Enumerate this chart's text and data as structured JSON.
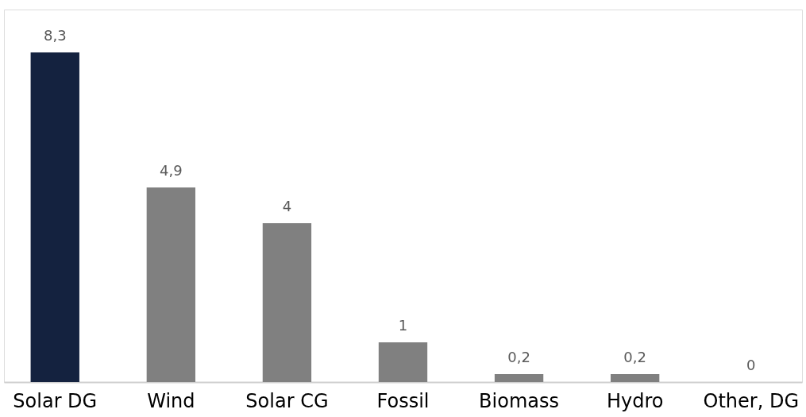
{
  "chart_data": {
    "type": "bar",
    "categories": [
      "Solar DG",
      "Wind",
      "Solar CG",
      "Fossil",
      "Biomass",
      "Hydro",
      "Other, DG"
    ],
    "values": [
      8.3,
      4.9,
      4,
      1,
      0.2,
      0.2,
      0
    ],
    "colors": [
      "#14223f",
      "#808080",
      "#808080",
      "#808080",
      "#808080",
      "#808080",
      "#808080"
    ],
    "value_labels": [
      "8,3",
      "4,9",
      "4",
      "1",
      "0,2",
      "0,2",
      "0"
    ],
    "grid": false
  }
}
